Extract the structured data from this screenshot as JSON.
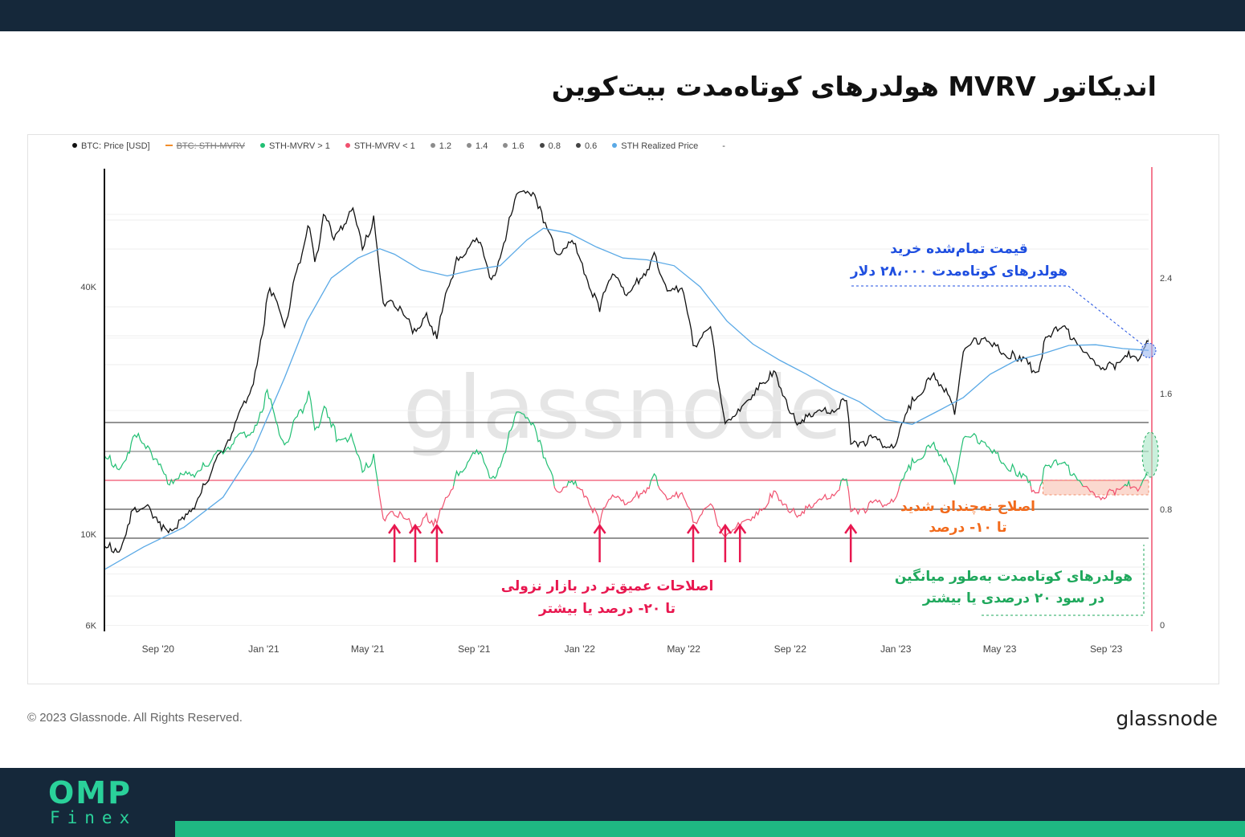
{
  "page": {
    "title": "اندیکاتور MVRV هولدرهای کوتاه‌مدت بیت‌کوین",
    "copyright": "© 2023 Glassnode. All Rights Reserved.",
    "brand": "glassnode",
    "watermark": "glassnode",
    "logo": {
      "main": "OMP",
      "sub": "Finex"
    },
    "colors": {
      "background_bars": "#15283a",
      "accent": "#1fb882"
    }
  },
  "legend": [
    {
      "label": "BTC: Price [USD]",
      "color": "#111111",
      "active": true
    },
    {
      "label": "BTC: STH-MVRV",
      "color": "#f28e2b",
      "active": false
    },
    {
      "label": "STH-MVRV > 1",
      "color": "#21bf73",
      "active": true
    },
    {
      "label": "STH-MVRV < 1",
      "color": "#f0506e",
      "active": true
    },
    {
      "label": "1.2",
      "color": "#8c8c8c",
      "active": true
    },
    {
      "label": "1.4",
      "color": "#8c8c8c",
      "active": true
    },
    {
      "label": "1.6",
      "color": "#8c8c8c",
      "active": true
    },
    {
      "label": "0.8",
      "color": "#444444",
      "active": true
    },
    {
      "label": "0.6",
      "color": "#444444",
      "active": true
    },
    {
      "label": "STH Realized Price",
      "color": "#5aa9e6",
      "active": true
    },
    {
      "label": "-",
      "color": "#ffffff",
      "active": true
    }
  ],
  "annotations": {
    "realized": {
      "line1": "قیمت تمام‌شده خرید",
      "line2": "هولدرهای کوتاه‌مدت ۲۸،۰۰۰ دلار",
      "color": "#1f4fe0"
    },
    "mild": {
      "line1": "اصلاح نه‌چندان شدید",
      "line2": "تا ۱۰- درصد",
      "color": "#f26a1b"
    },
    "deep": {
      "line1": "اصلاحات عمیق‌تر در بازار نزولی",
      "line2": "تا ۲۰- درصد یا بیشتر",
      "color": "#e8174f"
    },
    "profit": {
      "line1": "هولدرهای کوتاه‌مدت به‌طور میانگین",
      "line2": "در سود ۲۰ درصدی یا بیشتر",
      "color": "#1fa85c"
    }
  },
  "chart_data": {
    "type": "line",
    "x_ticks": [
      "Sep '20",
      "Jan '21",
      "May '21",
      "Sep '21",
      "Jan '22",
      "May '22",
      "Sep '22",
      "Jan '23",
      "May '23",
      "Sep '23"
    ],
    "x_range": [
      "2020-07-01",
      "2023-10-20"
    ],
    "y_left": {
      "label": "",
      "scale": "log",
      "ticks": [
        "6K",
        "10K",
        "40K"
      ],
      "range": [
        6000,
        75000
      ]
    },
    "y_right": {
      "label": "",
      "scale": "linear",
      "ticks": [
        "0",
        "0.8",
        "1.6",
        "2.4"
      ],
      "range": [
        0,
        3.2
      ]
    },
    "reference_lines": [
      {
        "value": 1.4,
        "color": "#555555"
      },
      {
        "value": 1.2,
        "color": "#888888"
      },
      {
        "value": 1.0,
        "color": "#f0506e"
      },
      {
        "value": 0.8,
        "color": "#555555"
      },
      {
        "value": 0.6,
        "color": "#555555"
      }
    ],
    "series": [
      {
        "name": "BTC: Price [USD]",
        "axis": "left",
        "color": "#111111",
        "points": [
          [
            "2020-07-01",
            9200
          ],
          [
            "2020-07-20",
            9300
          ],
          [
            "2020-08-01",
            11300
          ],
          [
            "2020-08-20",
            11900
          ],
          [
            "2020-09-05",
            10200
          ],
          [
            "2020-10-01",
            10700
          ],
          [
            "2020-10-25",
            13200
          ],
          [
            "2020-11-15",
            16000
          ],
          [
            "2020-12-01",
            19000
          ],
          [
            "2020-12-20",
            23500
          ],
          [
            "2021-01-08",
            40000
          ],
          [
            "2021-01-25",
            32000
          ],
          [
            "2021-02-10",
            45000
          ],
          [
            "2021-02-21",
            57000
          ],
          [
            "2021-03-01",
            46000
          ],
          [
            "2021-03-13",
            61000
          ],
          [
            "2021-03-25",
            52000
          ],
          [
            "2021-04-14",
            63500
          ],
          [
            "2021-04-25",
            49000
          ],
          [
            "2021-05-08",
            58000
          ],
          [
            "2021-05-19",
            37000
          ],
          [
            "2021-06-01",
            36500
          ],
          [
            "2021-06-22",
            31500
          ],
          [
            "2021-07-10",
            34000
          ],
          [
            "2021-07-20",
            29800
          ],
          [
            "2021-08-01",
            40000
          ],
          [
            "2021-08-14",
            47000
          ],
          [
            "2021-09-06",
            52000
          ],
          [
            "2021-09-21",
            40500
          ],
          [
            "2021-10-01",
            48000
          ],
          [
            "2021-10-20",
            66000
          ],
          [
            "2021-11-10",
            68500
          ],
          [
            "2021-11-20",
            57000
          ],
          [
            "2021-12-05",
            49000
          ],
          [
            "2021-12-25",
            50800
          ],
          [
            "2022-01-10",
            41500
          ],
          [
            "2022-01-24",
            35500
          ],
          [
            "2022-02-10",
            44000
          ],
          [
            "2022-02-24",
            37000
          ],
          [
            "2022-03-28",
            47500
          ],
          [
            "2022-04-12",
            39500
          ],
          [
            "2022-05-01",
            38500
          ],
          [
            "2022-05-12",
            29000
          ],
          [
            "2022-06-01",
            31500
          ],
          [
            "2022-06-18",
            18500
          ],
          [
            "2022-07-01",
            19300
          ],
          [
            "2022-07-30",
            23800
          ],
          [
            "2022-08-15",
            24300
          ],
          [
            "2022-09-07",
            19000
          ],
          [
            "2022-10-01",
            19400
          ],
          [
            "2022-11-05",
            21000
          ],
          [
            "2022-11-10",
            16500
          ],
          [
            "2022-12-01",
            17000
          ],
          [
            "2022-12-31",
            16500
          ],
          [
            "2023-01-20",
            21000
          ],
          [
            "2023-02-16",
            24500
          ],
          [
            "2023-03-10",
            20000
          ],
          [
            "2023-03-20",
            28000
          ],
          [
            "2023-04-14",
            30500
          ],
          [
            "2023-05-01",
            28000
          ],
          [
            "2023-05-20",
            26800
          ],
          [
            "2023-06-15",
            25000
          ],
          [
            "2023-06-23",
            30500
          ],
          [
            "2023-07-13",
            31500
          ],
          [
            "2023-08-01",
            29300
          ],
          [
            "2023-08-18",
            26200
          ],
          [
            "2023-09-11",
            25200
          ],
          [
            "2023-10-01",
            27500
          ],
          [
            "2023-10-12",
            26800
          ],
          [
            "2023-10-20",
            29500
          ],
          [
            "2023-10-24",
            34500
          ]
        ]
      },
      {
        "name": "STH Realized Price",
        "axis": "left",
        "color": "#5aa9e6",
        "points": [
          [
            "2020-07-01",
            8200
          ],
          [
            "2020-08-15",
            9300
          ],
          [
            "2020-10-01",
            10400
          ],
          [
            "2020-11-15",
            12300
          ],
          [
            "2020-12-20",
            16000
          ],
          [
            "2021-01-25",
            24000
          ],
          [
            "2021-02-20",
            33000
          ],
          [
            "2021-03-20",
            42000
          ],
          [
            "2021-04-20",
            47000
          ],
          [
            "2021-05-15",
            49500
          ],
          [
            "2021-06-01",
            48000
          ],
          [
            "2021-07-01",
            44000
          ],
          [
            "2021-08-01",
            42500
          ],
          [
            "2021-09-01",
            44000
          ],
          [
            "2021-10-01",
            45000
          ],
          [
            "2021-11-01",
            52000
          ],
          [
            "2021-11-20",
            55500
          ],
          [
            "2021-12-20",
            54000
          ],
          [
            "2022-01-20",
            50000
          ],
          [
            "2022-02-20",
            47000
          ],
          [
            "2022-03-20",
            46500
          ],
          [
            "2022-04-20",
            45000
          ],
          [
            "2022-05-20",
            40000
          ],
          [
            "2022-06-20",
            33000
          ],
          [
            "2022-07-20",
            29000
          ],
          [
            "2022-08-20",
            26500
          ],
          [
            "2022-09-20",
            24500
          ],
          [
            "2022-10-20",
            22500
          ],
          [
            "2022-11-20",
            21000
          ],
          [
            "2022-12-20",
            19000
          ],
          [
            "2023-01-20",
            18500
          ],
          [
            "2023-02-20",
            20000
          ],
          [
            "2023-03-20",
            21500
          ],
          [
            "2023-04-20",
            24500
          ],
          [
            "2023-05-20",
            26500
          ],
          [
            "2023-06-20",
            27500
          ],
          [
            "2023-07-20",
            28800
          ],
          [
            "2023-08-20",
            28900
          ],
          [
            "2023-09-20",
            28300
          ],
          [
            "2023-10-20",
            28000
          ]
        ]
      },
      {
        "name": "STH-MVRV",
        "axis": "right",
        "color_above_1": "#21bf73",
        "color_below_1": "#f0506e",
        "points": [
          [
            "2020-07-01",
            1.15
          ],
          [
            "2020-07-20",
            1.1
          ],
          [
            "2020-08-05",
            1.3
          ],
          [
            "2020-08-20",
            1.25
          ],
          [
            "2020-09-10",
            1.0
          ],
          [
            "2020-10-01",
            1.02
          ],
          [
            "2020-10-25",
            1.1
          ],
          [
            "2020-11-15",
            1.2
          ],
          [
            "2020-12-01",
            1.3
          ],
          [
            "2020-12-20",
            1.35
          ],
          [
            "2021-01-05",
            1.6
          ],
          [
            "2021-01-25",
            1.25
          ],
          [
            "2021-02-15",
            1.5
          ],
          [
            "2021-02-22",
            1.6
          ],
          [
            "2021-03-01",
            1.35
          ],
          [
            "2021-03-14",
            1.5
          ],
          [
            "2021-03-26",
            1.3
          ],
          [
            "2021-04-14",
            1.3
          ],
          [
            "2021-04-25",
            1.05
          ],
          [
            "2021-05-08",
            1.15
          ],
          [
            "2021-05-19",
            0.75
          ],
          [
            "2021-06-01",
            0.78
          ],
          [
            "2021-06-22",
            0.68
          ],
          [
            "2021-07-10",
            0.75
          ],
          [
            "2021-07-20",
            0.7
          ],
          [
            "2021-08-01",
            0.9
          ],
          [
            "2021-08-14",
            1.05
          ],
          [
            "2021-09-06",
            1.2
          ],
          [
            "2021-09-21",
            0.98
          ],
          [
            "2021-10-01",
            1.12
          ],
          [
            "2021-10-20",
            1.45
          ],
          [
            "2021-11-10",
            1.4
          ],
          [
            "2021-11-20",
            1.15
          ],
          [
            "2021-12-05",
            0.95
          ],
          [
            "2021-12-25",
            0.97
          ],
          [
            "2022-01-10",
            0.88
          ],
          [
            "2022-01-24",
            0.72
          ],
          [
            "2022-02-10",
            0.92
          ],
          [
            "2022-02-24",
            0.8
          ],
          [
            "2022-03-28",
            1.02
          ],
          [
            "2022-04-12",
            0.88
          ],
          [
            "2022-05-01",
            0.88
          ],
          [
            "2022-05-12",
            0.72
          ],
          [
            "2022-06-01",
            0.82
          ],
          [
            "2022-06-18",
            0.6
          ],
          [
            "2022-07-01",
            0.66
          ],
          [
            "2022-07-30",
            0.82
          ],
          [
            "2022-08-15",
            0.9
          ],
          [
            "2022-09-07",
            0.78
          ],
          [
            "2022-10-01",
            0.82
          ],
          [
            "2022-11-05",
            1.0
          ],
          [
            "2022-11-10",
            0.78
          ],
          [
            "2022-12-01",
            0.82
          ],
          [
            "2022-12-31",
            0.88
          ],
          [
            "2023-01-20",
            1.12
          ],
          [
            "2023-02-16",
            1.25
          ],
          [
            "2023-03-10",
            1.0
          ],
          [
            "2023-03-20",
            1.3
          ],
          [
            "2023-04-14",
            1.28
          ],
          [
            "2023-05-01",
            1.15
          ],
          [
            "2023-05-20",
            1.05
          ],
          [
            "2023-06-15",
            0.92
          ],
          [
            "2023-06-23",
            1.12
          ],
          [
            "2023-07-13",
            1.1
          ],
          [
            "2023-08-01",
            1.02
          ],
          [
            "2023-08-18",
            0.9
          ],
          [
            "2023-09-11",
            0.9
          ],
          [
            "2023-10-01",
            0.97
          ],
          [
            "2023-10-12",
            0.95
          ],
          [
            "2023-10-20",
            1.05
          ],
          [
            "2023-10-24",
            1.22
          ]
        ]
      }
    ],
    "markers": {
      "deep_correction_arrows": [
        "2021-06-01",
        "2021-06-25",
        "2021-07-20",
        "2022-01-24",
        "2022-05-12",
        "2022-06-18",
        "2022-07-05",
        "2022-11-10"
      ],
      "mild_correction_zone": {
        "from": "2023-06-20",
        "to": "2023-10-20",
        "min": 0.9,
        "max": 1.0
      },
      "current_realized_price": {
        "date": "2023-10-20",
        "value": 28000
      },
      "current_mvrv": {
        "date": "2023-10-22",
        "value": 1.2
      }
    }
  }
}
